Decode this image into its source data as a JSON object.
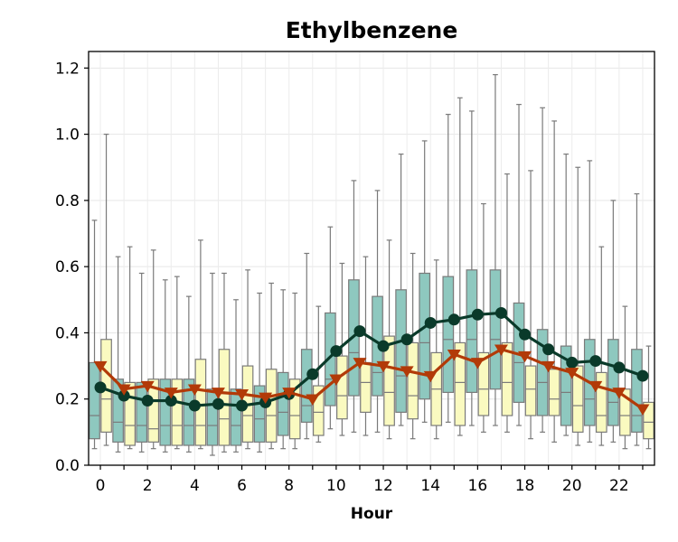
{
  "chart_data": {
    "type": "box",
    "title": "Ethylbenzene",
    "xlabel": "Hour",
    "ylabel": "",
    "ylim": [
      0,
      1.25
    ],
    "xlim": [
      -0.5,
      23.5
    ],
    "y_ticks": [
      0.0,
      0.2,
      0.4,
      0.6,
      0.8,
      1.0,
      1.2
    ],
    "y_tick_labels": [
      "0.0",
      "0.2",
      "0.4",
      "0.6",
      "0.8",
      "1.0",
      "1.2"
    ],
    "x_ticks": [
      0,
      2,
      4,
      6,
      8,
      10,
      12,
      14,
      16,
      18,
      20,
      22
    ],
    "x_tick_labels": [
      "0",
      "2",
      "4",
      "6",
      "8",
      "10",
      "12",
      "14",
      "16",
      "18",
      "20",
      "22"
    ],
    "x_minor_ticks": [
      1,
      3,
      5,
      7,
      9,
      11,
      13,
      15,
      17,
      19,
      21,
      23
    ],
    "grid": true,
    "hours": [
      0,
      1,
      2,
      3,
      4,
      5,
      6,
      7,
      8,
      9,
      10,
      11,
      12,
      13,
      14,
      15,
      16,
      17,
      18,
      19,
      20,
      21,
      22,
      23
    ],
    "box_series": [
      {
        "color": "#8ec8bf",
        "whisker_low": [
          0.05,
          0.04,
          0.04,
          0.04,
          0.04,
          0.03,
          0.04,
          0.04,
          0.05,
          0.08,
          0.11,
          0.1,
          0.1,
          0.12,
          0.13,
          0.13,
          0.12,
          0.12,
          0.12,
          0.1,
          0.09,
          0.07,
          0.07,
          0.06
        ],
        "q1": [
          0.08,
          0.07,
          0.07,
          0.06,
          0.06,
          0.06,
          0.06,
          0.07,
          0.09,
          0.13,
          0.18,
          0.21,
          0.21,
          0.16,
          0.2,
          0.22,
          0.22,
          0.23,
          0.19,
          0.15,
          0.12,
          0.12,
          0.12,
          0.1
        ],
        "median": [
          0.15,
          0.13,
          0.12,
          0.12,
          0.12,
          0.12,
          0.12,
          0.14,
          0.16,
          0.18,
          0.26,
          0.34,
          0.28,
          0.27,
          0.37,
          0.38,
          0.38,
          0.38,
          0.31,
          0.25,
          0.22,
          0.2,
          0.19,
          0.15
        ],
        "q3": [
          0.31,
          0.26,
          0.25,
          0.26,
          0.26,
          0.23,
          0.23,
          0.24,
          0.28,
          0.35,
          0.46,
          0.56,
          0.51,
          0.53,
          0.58,
          0.57,
          0.59,
          0.59,
          0.49,
          0.41,
          0.36,
          0.38,
          0.38,
          0.35
        ],
        "whisker_high": [
          0.74,
          0.63,
          0.58,
          0.56,
          0.51,
          0.58,
          0.5,
          0.52,
          0.53,
          0.64,
          0.72,
          0.86,
          0.83,
          0.94,
          0.98,
          1.06,
          1.07,
          1.18,
          1.09,
          1.08,
          0.94,
          0.92,
          0.8,
          0.82
        ]
      },
      {
        "color": "#fafac0",
        "whisker_low": [
          0.06,
          0.05,
          0.05,
          0.05,
          0.05,
          0.04,
          0.05,
          0.05,
          0.05,
          0.07,
          0.09,
          0.09,
          0.08,
          0.08,
          0.08,
          0.09,
          0.1,
          0.1,
          0.08,
          0.07,
          0.06,
          0.06,
          0.05,
          0.05
        ],
        "q1": [
          0.1,
          0.06,
          0.07,
          0.06,
          0.06,
          0.06,
          0.07,
          0.07,
          0.08,
          0.09,
          0.14,
          0.16,
          0.12,
          0.14,
          0.12,
          0.12,
          0.15,
          0.15,
          0.15,
          0.15,
          0.1,
          0.1,
          0.09,
          0.08
        ],
        "median": [
          0.2,
          0.12,
          0.11,
          0.12,
          0.12,
          0.14,
          0.15,
          0.15,
          0.15,
          0.16,
          0.21,
          0.25,
          0.22,
          0.21,
          0.23,
          0.25,
          0.23,
          0.25,
          0.23,
          0.2,
          0.18,
          0.15,
          0.15,
          0.13
        ],
        "q3": [
          0.38,
          0.25,
          0.26,
          0.26,
          0.32,
          0.35,
          0.3,
          0.29,
          0.26,
          0.24,
          0.33,
          0.31,
          0.39,
          0.37,
          0.34,
          0.37,
          0.34,
          0.37,
          0.3,
          0.29,
          0.3,
          0.28,
          0.23,
          0.19
        ],
        "whisker_high": [
          1.0,
          0.66,
          0.65,
          0.57,
          0.68,
          0.58,
          0.59,
          0.55,
          0.52,
          0.48,
          0.61,
          0.63,
          0.68,
          0.64,
          0.62,
          1.11,
          0.79,
          0.88,
          0.89,
          1.04,
          0.9,
          0.66,
          0.48,
          0.36
        ]
      }
    ],
    "series": [
      {
        "color": "#0a3a2a",
        "marker": "circle",
        "values": [
          0.235,
          0.21,
          0.195,
          0.195,
          0.18,
          0.185,
          0.18,
          0.19,
          0.215,
          0.275,
          0.345,
          0.405,
          0.36,
          0.38,
          0.43,
          0.44,
          0.455,
          0.46,
          0.395,
          0.35,
          0.31,
          0.315,
          0.295,
          0.27
        ]
      },
      {
        "color": "#b23a08",
        "marker": "triangle-down",
        "values": [
          0.3,
          0.23,
          0.24,
          0.22,
          0.23,
          0.22,
          0.215,
          0.205,
          0.22,
          0.2,
          0.26,
          0.31,
          0.3,
          0.285,
          0.27,
          0.335,
          0.31,
          0.35,
          0.33,
          0.3,
          0.28,
          0.24,
          0.22,
          0.17
        ]
      }
    ]
  }
}
